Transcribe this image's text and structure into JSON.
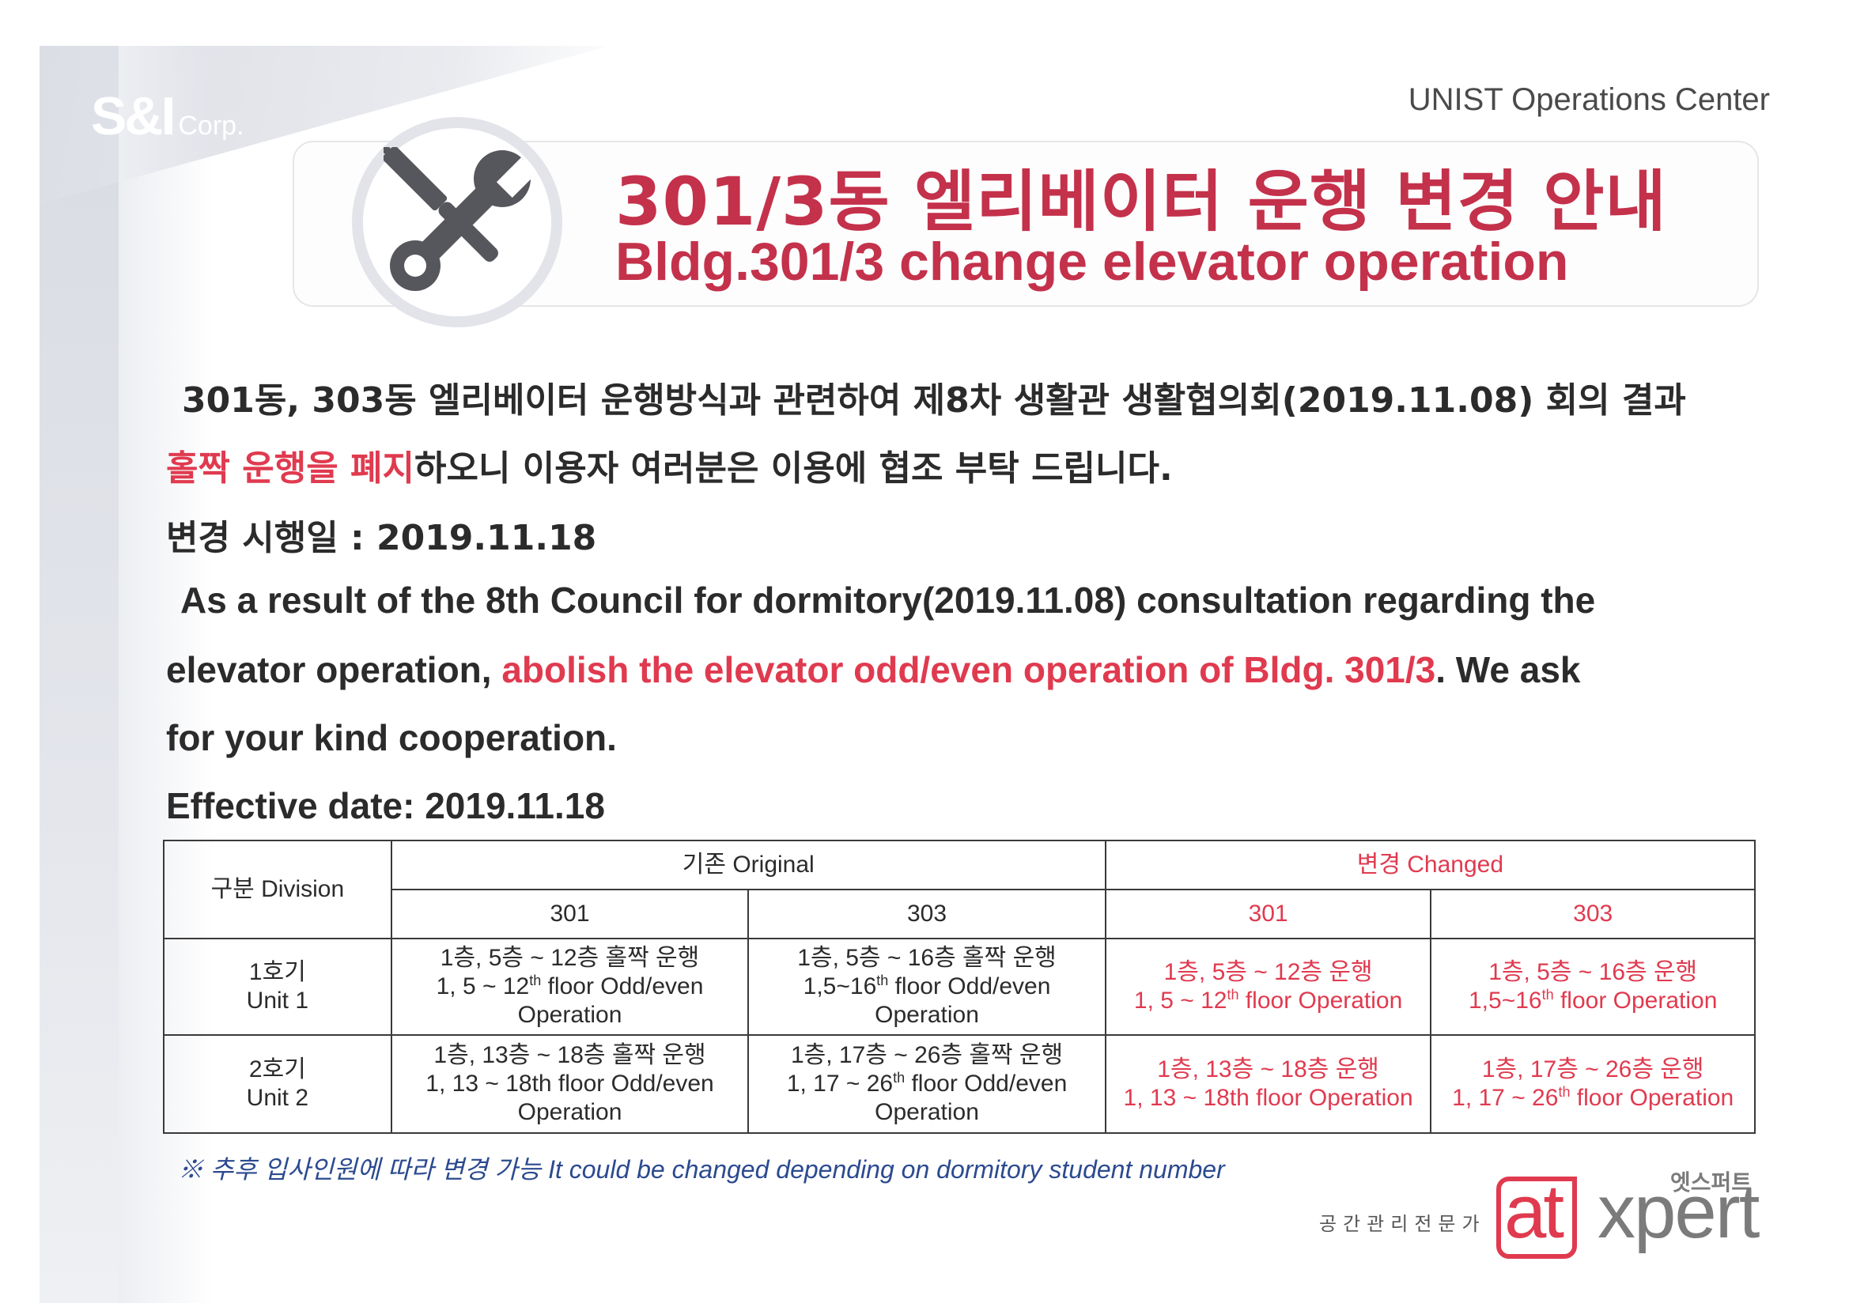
{
  "header": {
    "company_logo": "S&I",
    "company_logo_suffix": "Corp.",
    "org": "UNIST Operations Center"
  },
  "title": {
    "ko": "301/3동 엘리베이터 운행 변경 안내",
    "en": "Bldg.301/3 change elevator operation",
    "icon": "wrench-screwdriver-icon"
  },
  "body": {
    "ko_line1": "301동, 303동 엘리베이터 운행방식과 관련하여 제8차 생활관 생활협의회(2019.11.08) 회의 결과",
    "ko_line2_highlight": "홀짝 운행을 폐지",
    "ko_line2_rest": "하오니 이용자 여러분은 이용에 협조 부탁 드립니다.",
    "ko_date": "변경 시행일 : 2019.11.18",
    "en_line1": "As a result of the 8th Council for dormitory(2019.11.08) consultation regarding the",
    "en_line2_start": "elevator operation, ",
    "en_line2_highlight": "abolish the elevator odd/even operation of Bldg. 301/3",
    "en_line2_end": ". We ask",
    "en_line3": "for your kind cooperation.",
    "en_date": "Effective date: 2019.11.18"
  },
  "table": {
    "division_header": "구분 Division",
    "original_header": "기존 Original",
    "changed_header": "변경 Changed",
    "sub_headers": [
      "301",
      "303",
      "301",
      "303"
    ],
    "rows": [
      {
        "unit_ko": "1호기",
        "unit_en": "Unit 1",
        "cells": [
          {
            "ko": "1층, 5층 ~ 12층 홀짝 운행",
            "en_a": "1, 5 ~ 12",
            "sup": "th",
            "en_b": " floor Odd/even Operation"
          },
          {
            "ko": "1층, 5층 ~ 16층 홀짝 운행",
            "en_a": "1,5~16",
            "sup": "th",
            "en_b": " floor Odd/even Operation"
          },
          {
            "ko": "1층, 5층 ~ 12층 운행",
            "en_a": "1, 5 ~ 12",
            "sup": "th",
            "en_b": " floor Operation"
          },
          {
            "ko": "1층, 5층 ~ 16층 운행",
            "en_a": "1,5~16",
            "sup": "th",
            "en_b": " floor Operation"
          }
        ]
      },
      {
        "unit_ko": "2호기",
        "unit_en": "Unit 2",
        "cells": [
          {
            "ko": "1층, 13층 ~ 18층 홀짝 운행",
            "en_a": "1, 13 ~ 18th floor Odd/even Operation",
            "sup": "",
            "en_b": ""
          },
          {
            "ko": "1층, 17층 ~ 26층 홀짝 운행",
            "en_a": "1, 17 ~ 26",
            "sup": "th",
            "en_b": " floor Odd/even Operation"
          },
          {
            "ko": "1층, 13층 ~ 18층 운행",
            "en_a": "1, 13 ~ 18th floor Operation",
            "sup": "",
            "en_b": ""
          },
          {
            "ko": "1층, 17층 ~ 26층 운행",
            "en_a": "1, 17 ~ 26",
            "sup": "th",
            "en_b": " floor Operation"
          }
        ]
      }
    ]
  },
  "note": "※ 추후 입사인원에 따라 변경 가능 It could be changed depending on dormitory student number",
  "footer_logo": {
    "subtitle": "공간관리전문가",
    "brand_at": "at",
    "brand_xpert": "xpert",
    "brand_ko": "엣스퍼트"
  },
  "colors": {
    "accent_red": "#c4314b",
    "highlight_red": "#e03a4f",
    "note_blue": "#2b4a8f"
  }
}
